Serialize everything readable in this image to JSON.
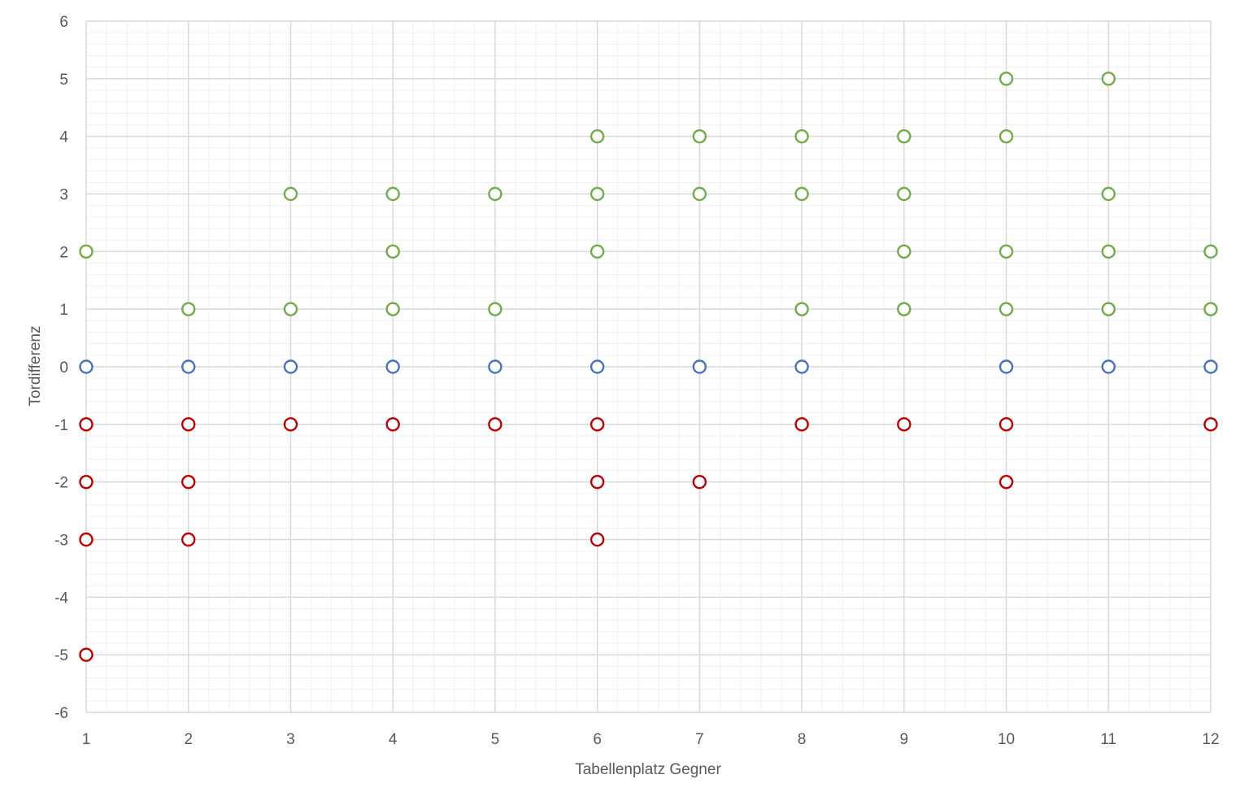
{
  "chart_data": {
    "type": "scatter",
    "title": "",
    "xlabel": "Tabellenplatz Gegner",
    "ylabel": "Tordifferenz",
    "xlim": [
      1,
      12
    ],
    "ylim": [
      -6,
      6
    ],
    "x_ticks": [
      "1",
      "2",
      "3",
      "4",
      "5",
      "6",
      "7",
      "8",
      "9",
      "10",
      "11",
      "12"
    ],
    "y_ticks": [
      "6",
      "5",
      "4",
      "3",
      "2",
      "1",
      "0",
      "-1",
      "-2",
      "-3",
      "-4",
      "-5",
      "-6"
    ],
    "grid": true,
    "legend": "none",
    "marker": "open-circle",
    "colors": {
      "win": "#70ad47",
      "draw": "#4472c4",
      "loss": "#c00000"
    },
    "series": [
      {
        "color": "#70ad47",
        "points": [
          [
            1,
            2
          ],
          [
            2,
            1
          ],
          [
            3,
            3
          ],
          [
            3,
            1
          ],
          [
            4,
            3
          ],
          [
            4,
            2
          ],
          [
            4,
            1
          ],
          [
            5,
            3
          ],
          [
            5,
            1
          ],
          [
            6,
            4
          ],
          [
            6,
            3
          ],
          [
            6,
            2
          ],
          [
            7,
            4
          ],
          [
            7,
            3
          ],
          [
            8,
            4
          ],
          [
            8,
            3
          ],
          [
            8,
            1
          ],
          [
            9,
            4
          ],
          [
            9,
            3
          ],
          [
            9,
            2
          ],
          [
            9,
            1
          ],
          [
            10,
            5
          ],
          [
            10,
            4
          ],
          [
            10,
            2
          ],
          [
            10,
            1
          ],
          [
            11,
            5
          ],
          [
            11,
            3
          ],
          [
            11,
            2
          ],
          [
            11,
            1
          ],
          [
            12,
            2
          ],
          [
            12,
            1
          ]
        ]
      },
      {
        "color": "#4472c4",
        "points": [
          [
            1,
            0
          ],
          [
            2,
            0
          ],
          [
            3,
            0
          ],
          [
            4,
            0
          ],
          [
            5,
            0
          ],
          [
            6,
            0
          ],
          [
            7,
            0
          ],
          [
            8,
            0
          ],
          [
            10,
            0
          ],
          [
            11,
            0
          ],
          [
            12,
            0
          ]
        ]
      },
      {
        "color": "#c00000",
        "points": [
          [
            1,
            -1
          ],
          [
            1,
            -2
          ],
          [
            1,
            -3
          ],
          [
            1,
            -5
          ],
          [
            2,
            -1
          ],
          [
            2,
            -2
          ],
          [
            2,
            -3
          ],
          [
            3,
            -1
          ],
          [
            4,
            -1
          ],
          [
            5,
            -1
          ],
          [
            6,
            -1
          ],
          [
            6,
            -2
          ],
          [
            6,
            -3
          ],
          [
            7,
            -2
          ],
          [
            8,
            -1
          ],
          [
            9,
            -1
          ],
          [
            10,
            -1
          ],
          [
            10,
            -2
          ],
          [
            12,
            -1
          ]
        ]
      }
    ]
  }
}
